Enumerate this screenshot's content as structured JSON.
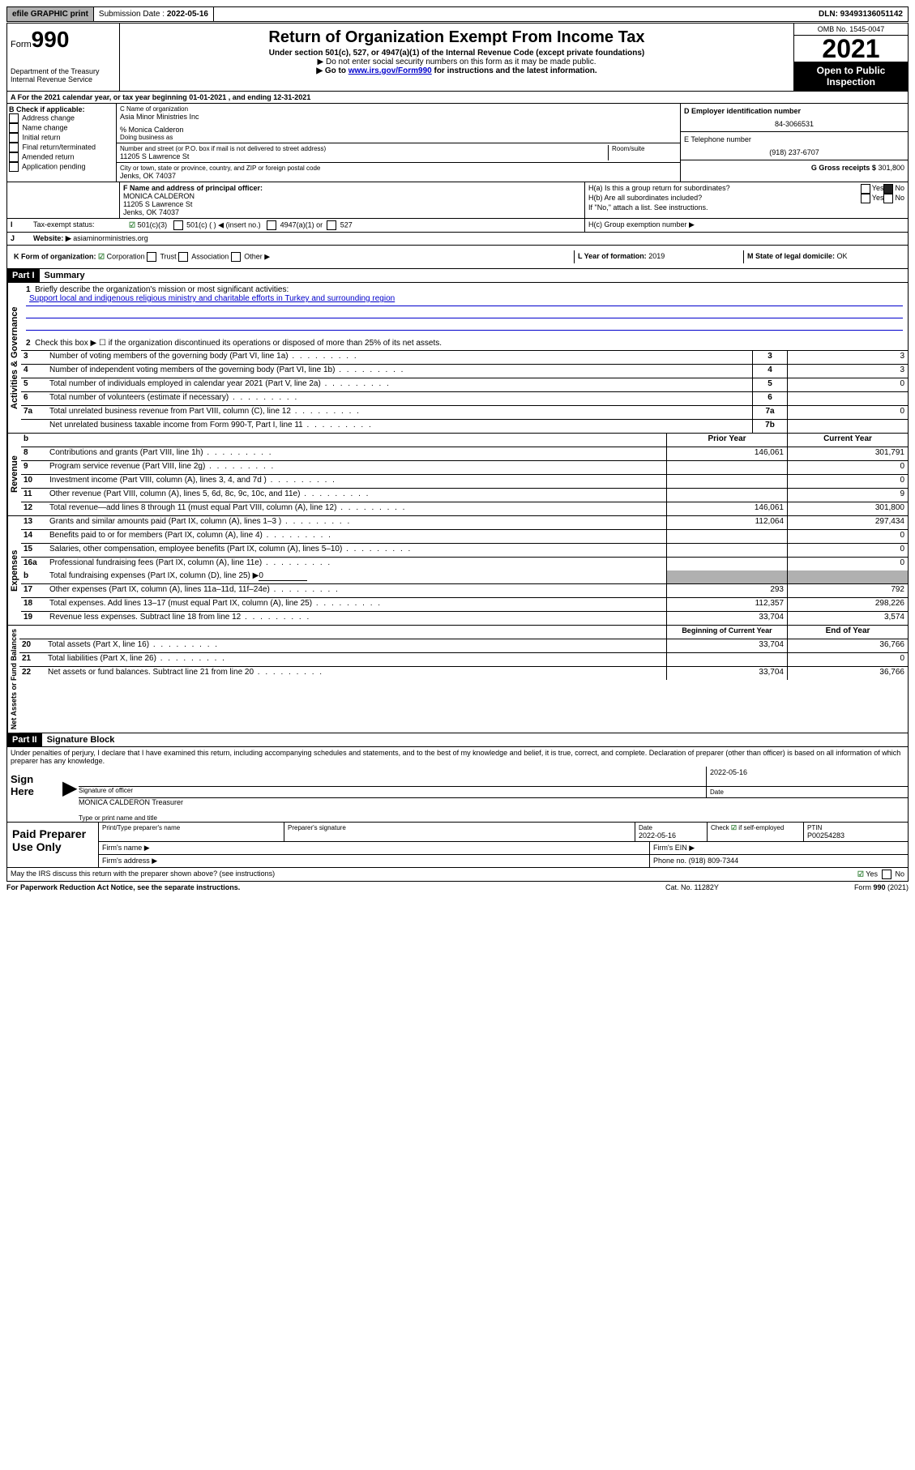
{
  "topbar": {
    "efile": "efile GRAPHIC print",
    "submission_label": "Submission Date :",
    "submission_date": "2022-05-16",
    "dln": "DLN: 93493136051142"
  },
  "header": {
    "form_label": "Form",
    "form_number": "990",
    "dept": "Department of the Treasury",
    "irs": "Internal Revenue Service",
    "title": "Return of Organization Exempt From Income Tax",
    "subtitle": "Under section 501(c), 527, or 4947(a)(1) of the Internal Revenue Code (except private foundations)",
    "note1": "▶ Do not enter social security numbers on this form as it may be made public.",
    "note2_pre": "▶ Go to ",
    "note2_link": "www.irs.gov/Form990",
    "note2_post": " for instructions and the latest information.",
    "omb": "OMB No. 1545-0047",
    "year": "2021",
    "open_public1": "Open to Public",
    "open_public2": "Inspection"
  },
  "row_a": "A For the 2021 calendar year, or tax year beginning 01-01-2021   , and ending 12-31-2021",
  "col_b": {
    "header": "B Check if applicable:",
    "items": [
      "Address change",
      "Name change",
      "Initial return",
      "Final return/terminated",
      "Amended return",
      "Application pending"
    ]
  },
  "col_c": {
    "name_label": "C Name of organization",
    "name": "Asia Minor Ministries Inc",
    "care_of": "% Monica Calderon",
    "dba": "Doing business as",
    "addr_label": "Number and street (or P.O. box if mail is not delivered to street address)",
    "room": "Room/suite",
    "addr": "11205 S Lawrence St",
    "city_label": "City or town, state or province, country, and ZIP or foreign postal code",
    "city": "Jenks, OK  74037"
  },
  "col_d": {
    "ein_label": "D Employer identification number",
    "ein": "84-3066531",
    "phone_label": "E Telephone number",
    "phone": "(918) 237-6707",
    "gross_label": "G Gross receipts $",
    "gross": "301,800"
  },
  "row_f": {
    "label": "F Name and address of principal officer:",
    "name": "MONICA CALDERON",
    "addr1": "11205 S Lawrence St",
    "addr2": "Jenks, OK  74037"
  },
  "row_h": {
    "ha": "H(a) Is this a group return for subordinates?",
    "hb": "H(b) Are all subordinates included?",
    "hb_note": "If \"No,\" attach a list. See instructions.",
    "hc": "H(c) Group exemption number ▶",
    "yes": "Yes",
    "no": "No"
  },
  "row_i": {
    "label": "I",
    "tax_status": "Tax-exempt status:",
    "c3": "501(c)(3)",
    "c": "501(c) (  ) ◀ (insert no.)",
    "a1": "4947(a)(1) or",
    "s527": "527"
  },
  "row_j": {
    "label": "J",
    "website_label": "Website: ▶",
    "website": "asiaminorministries.org"
  },
  "row_k": {
    "label": "K Form of organization:",
    "corp": "Corporation",
    "trust": "Trust",
    "assoc": "Association",
    "other": "Other ▶"
  },
  "row_l": {
    "year_label": "L Year of formation:",
    "year": "2019",
    "state_label": "M State of legal domicile:",
    "state": "OK"
  },
  "part1": {
    "header": "Part I",
    "title": "Summary",
    "q1": "Briefly describe the organization's mission or most significant activities:",
    "mission": "Support local and indigenous religious ministry and charitable efforts in Turkey and surrounding region",
    "q2": "Check this box ▶ ☐ if the organization discontinued its operations or disposed of more than 25% of its net assets."
  },
  "gov_lines": [
    {
      "n": "3",
      "t": "Number of voting members of the governing body (Part VI, line 1a)",
      "c": "3",
      "v": "3"
    },
    {
      "n": "4",
      "t": "Number of independent voting members of the governing body (Part VI, line 1b)",
      "c": "4",
      "v": "3"
    },
    {
      "n": "5",
      "t": "Total number of individuals employed in calendar year 2021 (Part V, line 2a)",
      "c": "5",
      "v": "0"
    },
    {
      "n": "6",
      "t": "Total number of volunteers (estimate if necessary)",
      "c": "6",
      "v": ""
    },
    {
      "n": "7a",
      "t": "Total unrelated business revenue from Part VIII, column (C), line 12",
      "c": "7a",
      "v": "0"
    },
    {
      "n": "",
      "t": "Net unrelated business taxable income from Form 990-T, Part I, line 11",
      "c": "7b",
      "v": ""
    }
  ],
  "col_headers": {
    "b": "b",
    "prior": "Prior Year",
    "current": "Current Year"
  },
  "rev_lines": [
    {
      "n": "8",
      "t": "Contributions and grants (Part VIII, line 1h)",
      "p": "146,061",
      "c": "301,791"
    },
    {
      "n": "9",
      "t": "Program service revenue (Part VIII, line 2g)",
      "p": "",
      "c": "0"
    },
    {
      "n": "10",
      "t": "Investment income (Part VIII, column (A), lines 3, 4, and 7d )",
      "p": "",
      "c": "0"
    },
    {
      "n": "11",
      "t": "Other revenue (Part VIII, column (A), lines 5, 6d, 8c, 9c, 10c, and 11e)",
      "p": "",
      "c": "9"
    },
    {
      "n": "12",
      "t": "Total revenue—add lines 8 through 11 (must equal Part VIII, column (A), line 12)",
      "p": "146,061",
      "c": "301,800"
    }
  ],
  "exp_lines": [
    {
      "n": "13",
      "t": "Grants and similar amounts paid (Part IX, column (A), lines 1–3 )",
      "p": "112,064",
      "c": "297,434"
    },
    {
      "n": "14",
      "t": "Benefits paid to or for members (Part IX, column (A), line 4)",
      "p": "",
      "c": "0"
    },
    {
      "n": "15",
      "t": "Salaries, other compensation, employee benefits (Part IX, column (A), lines 5–10)",
      "p": "",
      "c": "0"
    },
    {
      "n": "16a",
      "t": "Professional fundraising fees (Part IX, column (A), line 11e)",
      "p": "",
      "c": "0"
    }
  ],
  "exp_b": {
    "n": "b",
    "t": "Total fundraising expenses (Part IX, column (D), line 25) ▶",
    "v": "0"
  },
  "exp_lines2": [
    {
      "n": "17",
      "t": "Other expenses (Part IX, column (A), lines 11a–11d, 11f–24e)",
      "p": "293",
      "c": "792"
    },
    {
      "n": "18",
      "t": "Total expenses. Add lines 13–17 (must equal Part IX, column (A), line 25)",
      "p": "112,357",
      "c": "298,226"
    },
    {
      "n": "19",
      "t": "Revenue less expenses. Subtract line 18 from line 12",
      "p": "33,704",
      "c": "3,574"
    }
  ],
  "net_headers": {
    "begin": "Beginning of Current Year",
    "end": "End of Year"
  },
  "net_lines": [
    {
      "n": "20",
      "t": "Total assets (Part X, line 16)",
      "p": "33,704",
      "c": "36,766"
    },
    {
      "n": "21",
      "t": "Total liabilities (Part X, line 26)",
      "p": "",
      "c": "0"
    },
    {
      "n": "22",
      "t": "Net assets or fund balances. Subtract line 21 from line 20",
      "p": "33,704",
      "c": "36,766"
    }
  ],
  "part2": {
    "header": "Part II",
    "title": "Signature Block",
    "penalty": "Under penalties of perjury, I declare that I have examined this return, including accompanying schedules and statements, and to the best of my knowledge and belief, it is true, correct, and complete. Declaration of preparer (other than officer) is based on all information of which preparer has any knowledge."
  },
  "sign": {
    "label": "Sign Here",
    "sig_label": "Signature of officer",
    "date_label": "Date",
    "date": "2022-05-16",
    "name": "MONICA CALDERON Treasurer",
    "name_label": "Type or print name and title"
  },
  "paid": {
    "label": "Paid Preparer Use Only",
    "col1": "Print/Type preparer's name",
    "col2": "Preparer's signature",
    "col3": "Date",
    "date": "2022-05-16",
    "col4": "Check ☑ if self-employed",
    "col5_label": "PTIN",
    "col5": "P00254283",
    "firm_name": "Firm's name  ▶",
    "firm_ein": "Firm's EIN ▶",
    "firm_addr": "Firm's address ▶",
    "phone_label": "Phone no.",
    "phone": "(918) 809-7344"
  },
  "footer": {
    "discuss": "May the IRS discuss this return with the preparer shown above? (see instructions)",
    "yes": "Yes",
    "no": "No",
    "paperwork": "For Paperwork Reduction Act Notice, see the separate instructions.",
    "cat": "Cat. No. 11282Y",
    "form": "Form 990 (2021)"
  },
  "section_labels": {
    "gov": "Activities & Governance",
    "rev": "Revenue",
    "exp": "Expenses",
    "net": "Net Assets or Fund Balances"
  }
}
